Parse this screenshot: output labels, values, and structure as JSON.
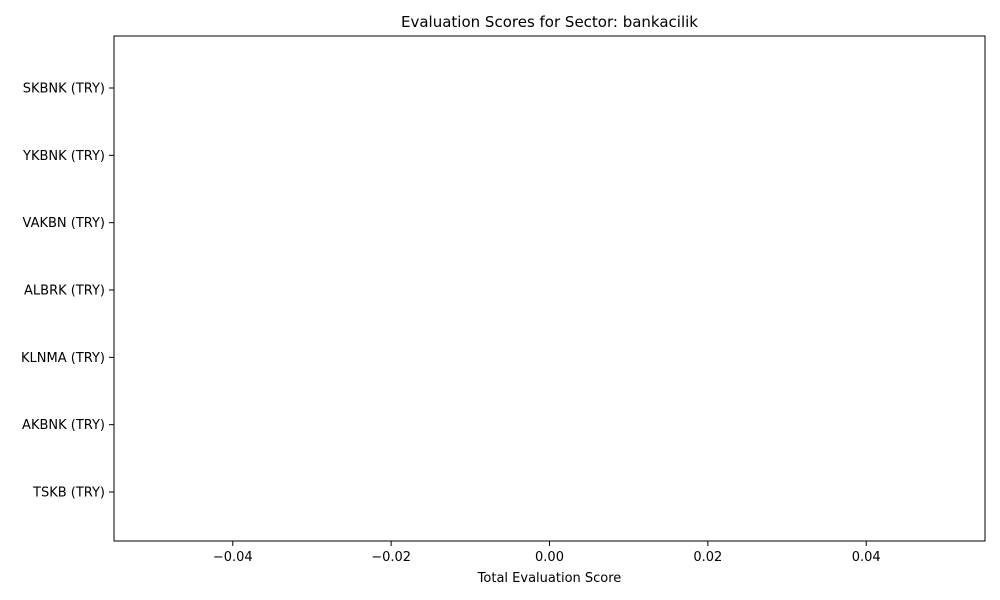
{
  "chart_data": {
    "type": "bar",
    "orientation": "horizontal",
    "title": "Evaluation Scores for Sector: bankacilik",
    "xlabel": "Total Evaluation Score",
    "ylabel": "",
    "categories": [
      "SKBNK (TRY)",
      "YKBNK (TRY)",
      "VAKBN (TRY)",
      "ALBRK (TRY)",
      "KLNMA (TRY)",
      "AKBNK (TRY)",
      "TSKB (TRY)"
    ],
    "values": [
      0,
      0,
      0,
      0,
      0,
      0,
      0
    ],
    "xlim": [
      -0.055,
      0.055
    ],
    "xticks": [
      -0.04,
      -0.02,
      0.0,
      0.02,
      0.04
    ],
    "xtick_labels": [
      "−0.04",
      "−0.02",
      "0.00",
      "0.02",
      "0.04"
    ],
    "grid": false,
    "bar_color": "#1f77b4"
  }
}
